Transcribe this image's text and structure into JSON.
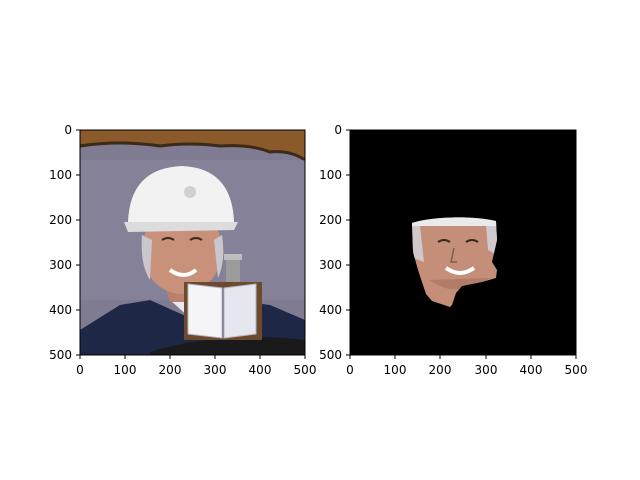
{
  "panels": [
    {
      "id": "original",
      "x_ticks": [
        "0",
        "100",
        "200",
        "300",
        "400",
        "500"
      ],
      "y_ticks": [
        "0",
        "100",
        "200",
        "300",
        "400",
        "500"
      ],
      "content": {
        "subject": "smiling man wearing white hard hat",
        "occluder": "open-book-icon"
      }
    },
    {
      "id": "masked",
      "x_ticks": [
        "0",
        "100",
        "200",
        "300",
        "400",
        "500"
      ],
      "y_ticks": [
        "0",
        "100",
        "200",
        "300",
        "400",
        "500"
      ],
      "content": {
        "subject": "face region only on black background"
      }
    }
  ],
  "colors": {
    "sky_purple": "#7d7a92",
    "helmet": "#f2f2f2",
    "skin": "#c9917a",
    "suit": "#1f2747",
    "mask_bg": "#000000",
    "awning": "#8a5a2a"
  }
}
